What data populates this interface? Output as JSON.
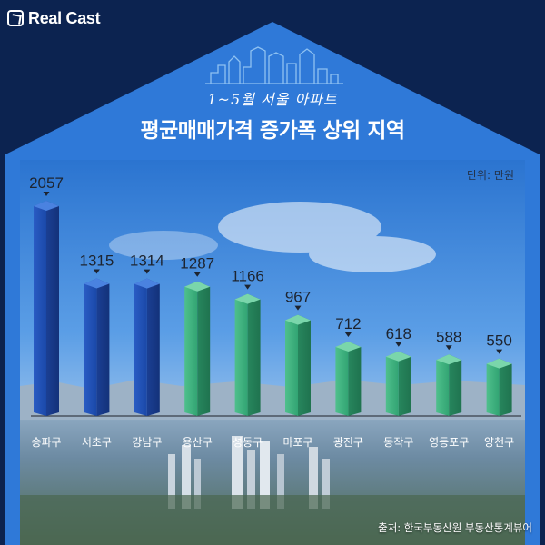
{
  "brand": {
    "logo_text": "Real Cast"
  },
  "header": {
    "subtitle": "1~5월 서울 아파트",
    "title": "평균매매가격 증가폭 상위 지역"
  },
  "unit_label": "단위: 만원",
  "source_label": "출처: 한국부동산원 부동산통계뷰어",
  "colors": {
    "background": "#0c2350",
    "house_blue": "#2f79d8",
    "bar_blue_light": "#3a6fd6",
    "bar_blue_dark": "#173f9c",
    "bar_green_light": "#55c893",
    "bar_green_dark": "#238760"
  },
  "chart_data": {
    "type": "bar",
    "title": "평균매매가격 증가폭 상위 지역",
    "xlabel": "",
    "ylabel": "",
    "unit": "만원",
    "categories": [
      "송파구",
      "서초구",
      "강남구",
      "용산구",
      "성동구",
      "마포구",
      "광진구",
      "동작구",
      "영등포구",
      "양천구"
    ],
    "values": [
      2057,
      1315,
      1314,
      1287,
      1166,
      967,
      712,
      618,
      588,
      550
    ],
    "bar_colors": [
      "blue",
      "blue",
      "blue",
      "green",
      "green",
      "green",
      "green",
      "green",
      "green",
      "green"
    ],
    "ylim": [
      0,
      2057
    ],
    "grid": false,
    "legend": "none"
  }
}
